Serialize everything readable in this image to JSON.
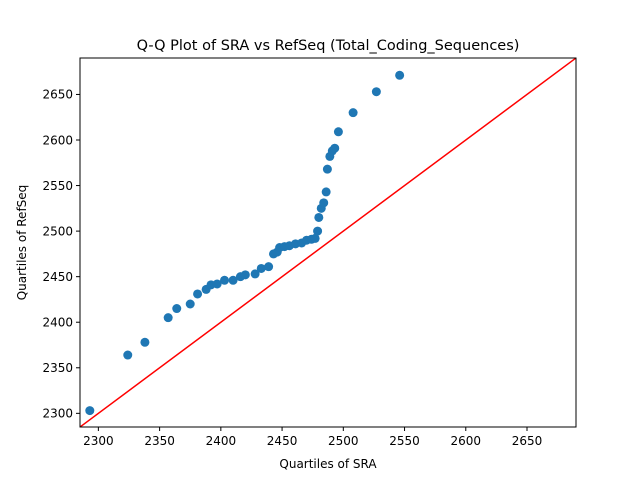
{
  "chart_data": {
    "type": "scatter",
    "title": "Q-Q Plot of SRA vs RefSeq (Total_Coding_Sequences)",
    "xlabel": "Quartiles of SRA",
    "ylabel": "Quartiles of RefSeq",
    "xlim": [
      2285,
      2690
    ],
    "ylim": [
      2285,
      2690
    ],
    "xticks": [
      2300,
      2350,
      2400,
      2450,
      2500,
      2550,
      2600,
      2650
    ],
    "yticks": [
      2300,
      2350,
      2400,
      2450,
      2500,
      2550,
      2600,
      2650
    ],
    "grid": false,
    "point_color": "#1f77b4",
    "reference_line": {
      "from": [
        2285,
        2285
      ],
      "to": [
        2690,
        2690
      ],
      "color": "#ff0000"
    },
    "points": [
      [
        2293,
        2303
      ],
      [
        2324,
        2364
      ],
      [
        2338,
        2378
      ],
      [
        2357,
        2405
      ],
      [
        2364,
        2415
      ],
      [
        2375,
        2420
      ],
      [
        2381,
        2431
      ],
      [
        2388,
        2436
      ],
      [
        2392,
        2441
      ],
      [
        2397,
        2442
      ],
      [
        2403,
        2446
      ],
      [
        2410,
        2446
      ],
      [
        2416,
        2450
      ],
      [
        2420,
        2452
      ],
      [
        2428,
        2453
      ],
      [
        2433,
        2459
      ],
      [
        2439,
        2461
      ],
      [
        2443,
        2475
      ],
      [
        2446,
        2477
      ],
      [
        2448,
        2482
      ],
      [
        2452,
        2483
      ],
      [
        2456,
        2484
      ],
      [
        2461,
        2486
      ],
      [
        2466,
        2487
      ],
      [
        2470,
        2490
      ],
      [
        2474,
        2491
      ],
      [
        2477,
        2492
      ],
      [
        2479,
        2500
      ],
      [
        2480,
        2515
      ],
      [
        2482,
        2525
      ],
      [
        2484,
        2531
      ],
      [
        2486,
        2543
      ],
      [
        2487,
        2568
      ],
      [
        2489,
        2582
      ],
      [
        2491,
        2588
      ],
      [
        2493,
        2591
      ],
      [
        2496,
        2609
      ],
      [
        2508,
        2630
      ],
      [
        2527,
        2653
      ],
      [
        2546,
        2671
      ]
    ]
  }
}
